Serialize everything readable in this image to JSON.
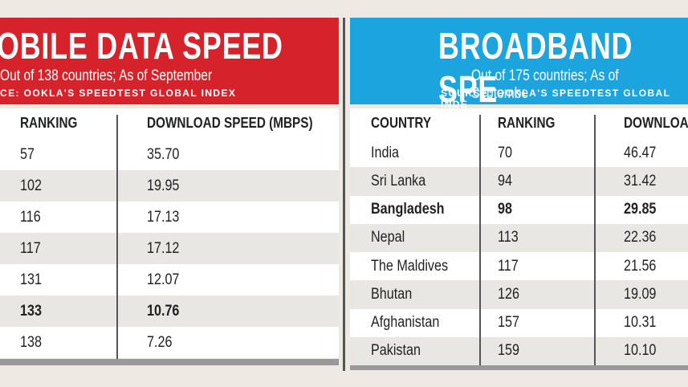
{
  "left": {
    "title": "OBILE DATA SPEED",
    "subtitle": "Out of 138 countries; As of September",
    "source": "CE: OOKLA'S SPEEDTEST GLOBAL INDEX",
    "headers": [
      "RANKING",
      "DOWNLOAD SPEED (MBPS)"
    ],
    "rows": [
      [
        "57",
        "35.70"
      ],
      [
        "102",
        "19.95"
      ],
      [
        "116",
        "17.13"
      ],
      [
        "117",
        "17.12"
      ],
      [
        "131",
        "12.07"
      ],
      [
        "133",
        "10.76"
      ],
      [
        "138",
        "7.26"
      ]
    ]
  },
  "right": {
    "title": "BROADBAND SPE",
    "subtitle": "Out of 175 countries; As of Septembe",
    "source": "SOURCE: OOKLA'S SPEEDTEST GLOBAL INDE",
    "headers": [
      "COUNTRY",
      "RANKING",
      "DOWNLOA"
    ],
    "rows": [
      [
        "India",
        "70",
        "46.47"
      ],
      [
        "Sri Lanka",
        "94",
        "31.42"
      ],
      [
        "Bangladesh",
        "98",
        "29.85"
      ],
      [
        "Nepal",
        "113",
        "22.36"
      ],
      [
        "The Maldives",
        "117",
        "21.56"
      ],
      [
        "Bhutan",
        "126",
        "19.09"
      ],
      [
        "Afghanistan",
        "157",
        "10.31"
      ],
      [
        "Pakistan",
        "159",
        "10.10"
      ]
    ]
  }
}
